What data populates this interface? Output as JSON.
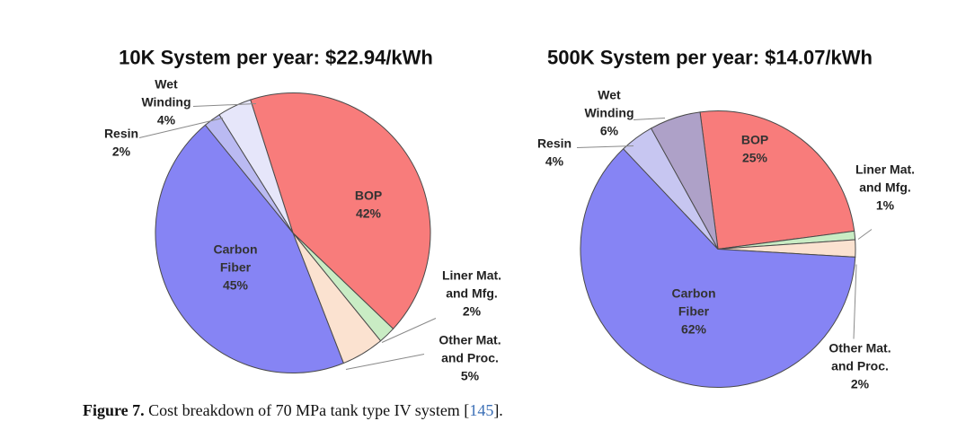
{
  "chart_data": [
    {
      "type": "pie",
      "title": "10K System per year: $22.94/kWh",
      "slices": [
        {
          "key": "bop",
          "label_lines": [
            "BOP",
            "42%"
          ],
          "value": 42,
          "color": "#f87c7b"
        },
        {
          "key": "liner",
          "label_lines": [
            "Liner Mat.",
            "and Mfg.",
            "2%"
          ],
          "value": 2,
          "color": "#c9ecc4"
        },
        {
          "key": "other",
          "label_lines": [
            "Other Mat.",
            "and Proc.",
            "5%"
          ],
          "value": 5,
          "color": "#fbe2d0"
        },
        {
          "key": "carbon",
          "label_lines": [
            "Carbon",
            "Fiber",
            "45%"
          ],
          "value": 45,
          "color": "#8684f4"
        },
        {
          "key": "resin",
          "label_lines": [
            "Resin",
            "2%"
          ],
          "value": 2,
          "color": "#babaf2"
        },
        {
          "key": "wet",
          "label_lines": [
            "Wet",
            "Winding",
            "4%"
          ],
          "value": 4,
          "color": "#e6e6fa"
        }
      ]
    },
    {
      "type": "pie",
      "title": "500K System per year: $14.07/kWh",
      "slices": [
        {
          "key": "bop",
          "label_lines": [
            "BOP",
            "25%"
          ],
          "value": 25,
          "color": "#f87c7b"
        },
        {
          "key": "liner",
          "label_lines": [
            "Liner Mat.",
            "and Mfg.",
            "1%"
          ],
          "value": 1,
          "color": "#c9ecc4"
        },
        {
          "key": "other",
          "label_lines": [
            "Other Mat.",
            "and Proc.",
            "2%"
          ],
          "value": 2,
          "color": "#fbe2d0"
        },
        {
          "key": "carbon",
          "label_lines": [
            "Carbon",
            "Fiber",
            "62%"
          ],
          "value": 62,
          "color": "#8684f4"
        },
        {
          "key": "resin",
          "label_lines": [
            "Resin",
            "4%"
          ],
          "value": 4,
          "color": "#c7c6f1"
        },
        {
          "key": "wet",
          "label_lines": [
            "Wet",
            "Winding",
            "6%"
          ],
          "value": 6,
          "color": "#aea1c8"
        }
      ]
    }
  ],
  "caption": {
    "figure_label": "Figure 7.",
    "text": " Cost breakdown of 70 MPa tank type IV system [",
    "ref": "145",
    "end": "]."
  }
}
